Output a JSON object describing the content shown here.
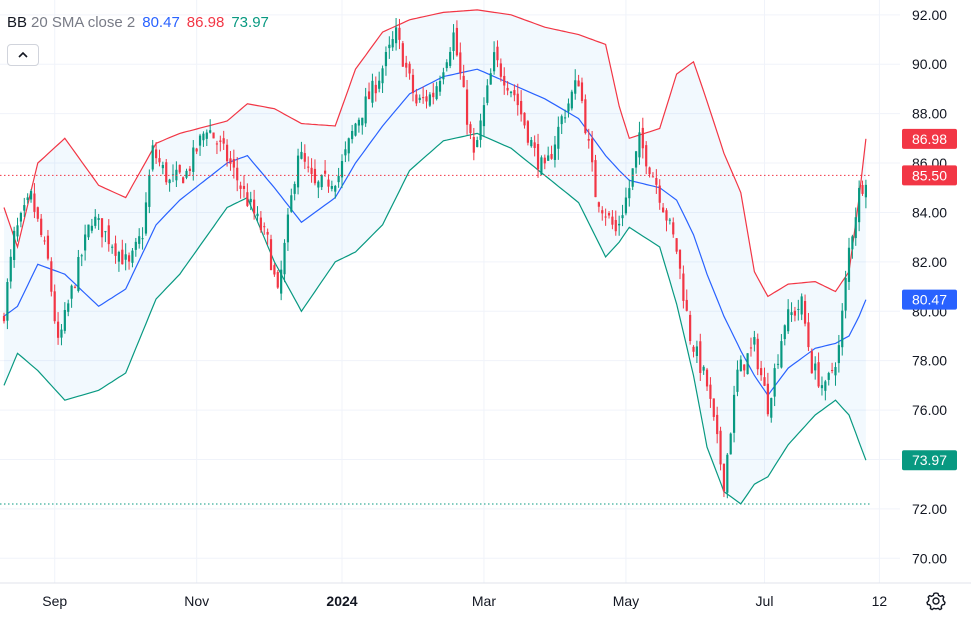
{
  "legend": {
    "name": "BB",
    "params": "20 SMA close 2",
    "basis": "80.47",
    "upper": "86.98",
    "lower": "73.97"
  },
  "colors": {
    "basis": "#2962ff",
    "upper": "#f23645",
    "lower": "#089981",
    "up_candle": "#089981",
    "down_candle": "#f23645",
    "band_fill": "#2196f3"
  },
  "icons": {
    "collapse": "chevron-up-icon",
    "settings": "gear-icon"
  },
  "chart_data": {
    "type": "candlestick",
    "indicator": "Bollinger Bands",
    "y_axis": {
      "min": 69.0,
      "max": 92.6,
      "ticks": [
        "70.00",
        "72.00",
        "74.00",
        "76.00",
        "78.00",
        "80.00",
        "82.00",
        "84.00",
        "86.00",
        "88.00",
        "90.00",
        "92.00"
      ],
      "side": "right"
    },
    "x_axis": {
      "ticks": [
        {
          "label": "Sep",
          "bold": false,
          "bar": 15
        },
        {
          "label": "Nov",
          "bold": false,
          "bar": 57
        },
        {
          "label": "2024",
          "bold": true,
          "bar": 100
        },
        {
          "label": "Mar",
          "bold": false,
          "bar": 142
        },
        {
          "label": "May",
          "bold": false,
          "bar": 184
        },
        {
          "label": "Jul",
          "bold": false,
          "bar": 225
        },
        {
          "label": "12",
          "bold": false,
          "bar": 259
        }
      ]
    },
    "price_labels": [
      {
        "label": "86.98",
        "value": 86.98,
        "color": "#f23645"
      },
      {
        "label": "85.50",
        "value": 85.5,
        "color": "#f23645"
      },
      {
        "label": "80.47",
        "value": 80.47,
        "color": "#2962ff"
      },
      {
        "label": "73.97",
        "value": 73.97,
        "color": "#089981"
      }
    ],
    "price_lines": [
      {
        "value": 85.5,
        "color": "#f23645"
      },
      {
        "value": 72.2,
        "color": "#089981"
      }
    ],
    "key_closes": [
      [
        0,
        80.0
      ],
      [
        3,
        83.0
      ],
      [
        8,
        84.6
      ],
      [
        13,
        82.0
      ],
      [
        16,
        78.6
      ],
      [
        20,
        80.8
      ],
      [
        26,
        83.8
      ],
      [
        32,
        82.8
      ],
      [
        37,
        81.8
      ],
      [
        41,
        83.2
      ],
      [
        44,
        86.5
      ],
      [
        49,
        85.2
      ],
      [
        54,
        85.6
      ],
      [
        60,
        87.5
      ],
      [
        66,
        86.2
      ],
      [
        72,
        84.5
      ],
      [
        78,
        82.8
      ],
      [
        81,
        80.6
      ],
      [
        87,
        86.5
      ],
      [
        92,
        85.0
      ],
      [
        99,
        85.5
      ],
      [
        104,
        87.6
      ],
      [
        110,
        89.2
      ],
      [
        116,
        91.2
      ],
      [
        122,
        88.4
      ],
      [
        127,
        88.8
      ],
      [
        133,
        91.2
      ],
      [
        139,
        86.2
      ],
      [
        145,
        90.2
      ],
      [
        151,
        88.8
      ],
      [
        157,
        86.4
      ],
      [
        160,
        85.6
      ],
      [
        165,
        87.8
      ],
      [
        170,
        89.4
      ],
      [
        175,
        84.8
      ],
      [
        181,
        83.2
      ],
      [
        185,
        85.0
      ],
      [
        188,
        86.9
      ],
      [
        193,
        85.2
      ],
      [
        199,
        82.5
      ],
      [
        203,
        79.0
      ],
      [
        208,
        77.0
      ],
      [
        213,
        73.1
      ],
      [
        217,
        77.5
      ],
      [
        222,
        78.6
      ],
      [
        226,
        76.2
      ],
      [
        231,
        79.6
      ],
      [
        236,
        80.3
      ],
      [
        239,
        77.8
      ],
      [
        243,
        76.8
      ],
      [
        247,
        78.5
      ],
      [
        250,
        82.5
      ],
      [
        253,
        84.8
      ],
      [
        255,
        85.5
      ]
    ],
    "key_upper": [
      [
        0,
        84.2
      ],
      [
        4,
        82.6
      ],
      [
        10,
        86.0
      ],
      [
        18,
        87.0
      ],
      [
        28,
        85.1
      ],
      [
        36,
        84.6
      ],
      [
        45,
        86.8
      ],
      [
        52,
        87.2
      ],
      [
        66,
        87.7
      ],
      [
        72,
        88.4
      ],
      [
        80,
        88.2
      ],
      [
        88,
        87.6
      ],
      [
        98,
        87.5
      ],
      [
        104,
        89.8
      ],
      [
        112,
        91.3
      ],
      [
        120,
        91.8
      ],
      [
        130,
        92.1
      ],
      [
        140,
        92.2
      ],
      [
        150,
        92.0
      ],
      [
        160,
        91.5
      ],
      [
        170,
        91.2
      ],
      [
        178,
        90.8
      ],
      [
        182,
        88.3
      ],
      [
        185,
        87.0
      ],
      [
        194,
        87.4
      ],
      [
        199,
        89.6
      ],
      [
        204,
        90.1
      ],
      [
        208,
        88.5
      ],
      [
        213,
        86.4
      ],
      [
        218,
        84.8
      ],
      [
        222,
        81.6
      ],
      [
        226,
        80.6
      ],
      [
        232,
        81.1
      ],
      [
        240,
        81.2
      ],
      [
        246,
        80.8
      ],
      [
        250,
        81.6
      ],
      [
        253,
        84.6
      ],
      [
        255,
        86.98
      ]
    ],
    "key_basis": [
      [
        0,
        79.8
      ],
      [
        4,
        80.2
      ],
      [
        10,
        81.9
      ],
      [
        18,
        81.5
      ],
      [
        28,
        80.2
      ],
      [
        36,
        80.9
      ],
      [
        45,
        83.5
      ],
      [
        52,
        84.5
      ],
      [
        66,
        86.0
      ],
      [
        72,
        86.3
      ],
      [
        80,
        85.0
      ],
      [
        88,
        83.6
      ],
      [
        98,
        84.6
      ],
      [
        104,
        86.0
      ],
      [
        112,
        87.5
      ],
      [
        120,
        88.8
      ],
      [
        130,
        89.5
      ],
      [
        140,
        89.8
      ],
      [
        150,
        89.2
      ],
      [
        160,
        88.6
      ],
      [
        170,
        87.8
      ],
      [
        178,
        86.3
      ],
      [
        182,
        85.7
      ],
      [
        185,
        85.3
      ],
      [
        194,
        85.0
      ],
      [
        199,
        84.5
      ],
      [
        204,
        83.1
      ],
      [
        208,
        81.5
      ],
      [
        213,
        79.8
      ],
      [
        218,
        78.4
      ],
      [
        222,
        77.4
      ],
      [
        226,
        76.6
      ],
      [
        232,
        77.7
      ],
      [
        240,
        78.5
      ],
      [
        246,
        78.7
      ],
      [
        250,
        79.0
      ],
      [
        253,
        79.8
      ],
      [
        255,
        80.47
      ]
    ],
    "key_lower": [
      [
        0,
        77.0
      ],
      [
        4,
        78.3
      ],
      [
        10,
        77.6
      ],
      [
        18,
        76.4
      ],
      [
        28,
        76.8
      ],
      [
        36,
        77.5
      ],
      [
        45,
        80.5
      ],
      [
        52,
        81.5
      ],
      [
        66,
        84.2
      ],
      [
        72,
        84.6
      ],
      [
        80,
        82.0
      ],
      [
        88,
        80.0
      ],
      [
        98,
        82.0
      ],
      [
        104,
        82.4
      ],
      [
        112,
        83.5
      ],
      [
        120,
        85.7
      ],
      [
        130,
        86.9
      ],
      [
        140,
        87.2
      ],
      [
        150,
        86.6
      ],
      [
        160,
        85.5
      ],
      [
        170,
        84.4
      ],
      [
        178,
        82.2
      ],
      [
        182,
        82.8
      ],
      [
        185,
        83.4
      ],
      [
        194,
        82.6
      ],
      [
        199,
        80.3
      ],
      [
        204,
        77.4
      ],
      [
        208,
        74.5
      ],
      [
        213,
        72.7
      ],
      [
        218,
        72.2
      ],
      [
        222,
        73.0
      ],
      [
        226,
        73.3
      ],
      [
        232,
        74.6
      ],
      [
        240,
        75.8
      ],
      [
        246,
        76.4
      ],
      [
        250,
        75.8
      ],
      [
        253,
        74.7
      ],
      [
        255,
        73.97
      ]
    ]
  }
}
